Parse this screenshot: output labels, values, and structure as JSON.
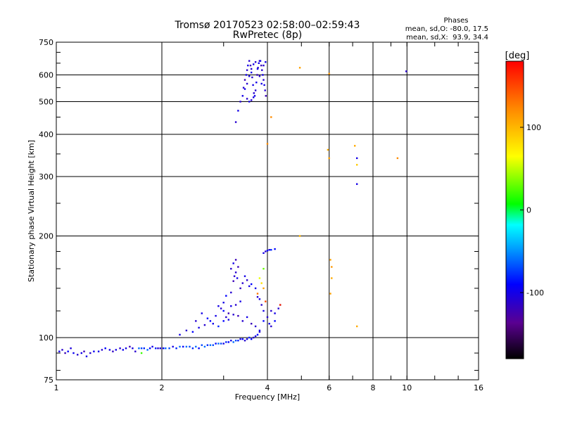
{
  "chart_data": {
    "type": "scatter",
    "title": "Tromsø 20170523 02:58:00–02:59:43",
    "subtitle": "RwPretec (8p)",
    "xlabel": "Frequency [MHz]",
    "ylabel": "Stationary phase Virtual Height [km]",
    "x_scale": "log",
    "y_scale": "log",
    "xlim": [
      1,
      16
    ],
    "ylim": [
      75,
      750
    ],
    "x_ticks": [
      1,
      2,
      4,
      6,
      8,
      10,
      16
    ],
    "x_tick_labels": [
      "1",
      "2",
      "4",
      "6",
      "8",
      "10",
      "16"
    ],
    "y_ticks": [
      75,
      100,
      200,
      300,
      400,
      500,
      600,
      750
    ],
    "y_tick_labels": [
      "75",
      "100",
      "200",
      "300",
      "400",
      "500",
      "600",
      "750"
    ],
    "grid": true,
    "stats": {
      "heading": "Phases",
      "o_line": "mean, sd,O: -80.0, 17.5",
      "x_line": "mean, sd,X:  93.9, 34.4"
    },
    "colorbar": {
      "title": "[deg]",
      "range": [
        -180,
        180
      ],
      "ticks": [
        100,
        0,
        -100
      ],
      "tick_labels": [
        "100",
        "0",
        "-100"
      ]
    },
    "series": [
      {
        "points": [
          [
            1.02,
            91,
            -100
          ],
          [
            1.04,
            92,
            -110
          ],
          [
            1.06,
            90,
            -120
          ],
          [
            1.08,
            91,
            -90
          ],
          [
            1.1,
            93,
            -105
          ],
          [
            1.12,
            90,
            -95
          ],
          [
            1.15,
            89,
            -110
          ],
          [
            1.18,
            90,
            -100
          ],
          [
            1.2,
            91,
            -120
          ],
          [
            1.22,
            88,
            -100
          ],
          [
            1.25,
            90,
            -110
          ],
          [
            1.28,
            91,
            -95
          ],
          [
            1.32,
            91,
            -100
          ],
          [
            1.35,
            92,
            -110
          ],
          [
            1.38,
            93,
            -90
          ],
          [
            1.42,
            92,
            -100
          ],
          [
            1.45,
            91,
            -115
          ],
          [
            1.48,
            92,
            -100
          ],
          [
            1.52,
            93,
            -110
          ],
          [
            1.55,
            92,
            -95
          ],
          [
            1.58,
            93,
            -100
          ],
          [
            1.62,
            94,
            -120
          ],
          [
            1.65,
            93,
            -100
          ],
          [
            1.68,
            91,
            -110
          ],
          [
            1.72,
            93,
            -60
          ],
          [
            1.75,
            93,
            -70
          ],
          [
            1.78,
            93,
            -80
          ],
          [
            1.82,
            92,
            -60
          ],
          [
            1.85,
            93,
            -90
          ],
          [
            1.88,
            94,
            -100
          ],
          [
            1.92,
            93,
            -80
          ],
          [
            1.95,
            93,
            -110
          ],
          [
            1.98,
            93,
            -100
          ],
          [
            2.02,
            93,
            -90
          ],
          [
            2.05,
            93,
            -60
          ],
          [
            2.1,
            93,
            -70
          ],
          [
            2.15,
            94,
            -100
          ],
          [
            2.2,
            93,
            -80
          ],
          [
            2.25,
            94,
            -60
          ],
          [
            2.3,
            94,
            -90
          ],
          [
            2.35,
            94,
            -60
          ],
          [
            2.4,
            94,
            -70
          ],
          [
            2.45,
            93,
            -80
          ],
          [
            2.5,
            94,
            -60
          ],
          [
            2.55,
            93,
            -90
          ],
          [
            2.6,
            95,
            -70
          ],
          [
            2.65,
            94,
            -60
          ],
          [
            2.7,
            95,
            -80
          ],
          [
            2.75,
            95,
            -60
          ],
          [
            2.8,
            95,
            -70
          ],
          [
            2.85,
            96,
            -90
          ],
          [
            2.9,
            96,
            -60
          ],
          [
            2.95,
            96,
            -70
          ],
          [
            3.0,
            96,
            -100
          ],
          [
            3.05,
            97,
            -80
          ],
          [
            3.1,
            97,
            -90
          ],
          [
            3.15,
            98,
            -100
          ],
          [
            3.2,
            97,
            -60
          ],
          [
            3.25,
            98,
            -70
          ],
          [
            3.3,
            98,
            -80
          ],
          [
            3.35,
            99,
            -100
          ],
          [
            3.4,
            99,
            -90
          ],
          [
            3.45,
            98,
            -110
          ],
          [
            3.5,
            99,
            -100
          ],
          [
            3.55,
            100,
            -80
          ],
          [
            3.6,
            99,
            -90
          ],
          [
            3.65,
            100,
            -110
          ],
          [
            3.7,
            101,
            -100
          ],
          [
            3.75,
            102,
            -90
          ],
          [
            3.8,
            104,
            -110
          ]
        ]
      },
      {
        "points": [
          [
            2.25,
            102,
            -100
          ],
          [
            2.35,
            105,
            -110
          ],
          [
            2.45,
            104,
            -90
          ],
          [
            2.55,
            107,
            -100
          ],
          [
            2.65,
            109,
            -110
          ],
          [
            2.75,
            112,
            -90
          ],
          [
            2.85,
            116,
            -100
          ],
          [
            2.95,
            122,
            -110
          ],
          [
            3.0,
            127,
            -100
          ],
          [
            3.05,
            133,
            -90
          ],
          [
            3.15,
            136,
            -110
          ],
          [
            3.2,
            147,
            -120
          ],
          [
            3.25,
            156,
            -110
          ],
          [
            3.3,
            162,
            -120
          ],
          [
            3.15,
            160,
            -110
          ],
          [
            3.2,
            166,
            -100
          ],
          [
            3.25,
            170,
            -120
          ],
          [
            3.22,
            152,
            -110
          ],
          [
            3.28,
            150,
            -100
          ],
          [
            3.35,
            140,
            -115
          ],
          [
            3.4,
            145,
            -110
          ],
          [
            3.45,
            152,
            -100
          ],
          [
            3.5,
            148,
            -110
          ],
          [
            3.55,
            142,
            -100
          ],
          [
            3.6,
            144,
            -90
          ],
          [
            3.7,
            140,
            -100
          ],
          [
            3.75,
            132,
            -110
          ],
          [
            3.8,
            130,
            -100
          ],
          [
            3.85,
            125,
            -110
          ],
          [
            3.9,
            120,
            -100
          ],
          [
            3.1,
            118,
            -120
          ],
          [
            3.2,
            117,
            -110
          ],
          [
            3.3,
            116,
            -120
          ],
          [
            3.15,
            124,
            -100
          ],
          [
            3.25,
            125,
            -110
          ],
          [
            3.35,
            128,
            -100
          ],
          [
            3.4,
            112,
            -110
          ],
          [
            3.5,
            115,
            -100
          ],
          [
            3.6,
            110,
            -120
          ],
          [
            3.7,
            108,
            -110
          ],
          [
            3.8,
            105,
            -100
          ],
          [
            3.9,
            112,
            -90
          ],
          [
            4.0,
            115,
            -110
          ],
          [
            4.05,
            110,
            -100
          ],
          [
            4.1,
            108,
            -110
          ],
          [
            4.2,
            118,
            -100
          ],
          [
            4.3,
            122,
            -110
          ],
          [
            4.35,
            125,
            -100
          ],
          [
            4.2,
            112,
            -90
          ],
          [
            4.1,
            120,
            -110
          ],
          [
            3.9,
            178,
            -100
          ],
          [
            3.95,
            180,
            -110
          ],
          [
            4.0,
            181,
            -90
          ],
          [
            4.05,
            182,
            -100
          ],
          [
            4.1,
            182,
            -80
          ],
          [
            4.2,
            183,
            -90
          ],
          [
            2.9,
            108,
            -80
          ],
          [
            3.0,
            112,
            -90
          ],
          [
            2.8,
            110,
            -100
          ],
          [
            2.7,
            114,
            -90
          ],
          [
            2.6,
            118,
            -100
          ],
          [
            2.5,
            112,
            -110
          ],
          [
            2.9,
            124,
            -100
          ],
          [
            3.0,
            120,
            -90
          ],
          [
            3.05,
            115,
            -110
          ],
          [
            3.1,
            113,
            -100
          ]
        ]
      },
      {
        "points": [
          [
            3.4,
            520,
            -100
          ],
          [
            3.42,
            550,
            -110
          ],
          [
            3.45,
            580,
            -120
          ],
          [
            3.48,
            600,
            -100
          ],
          [
            3.5,
            620,
            -110
          ],
          [
            3.52,
            640,
            -100
          ],
          [
            3.55,
            660,
            -110
          ],
          [
            3.58,
            640,
            -120
          ],
          [
            3.6,
            610,
            -100
          ],
          [
            3.62,
            590,
            -110
          ],
          [
            3.64,
            560,
            -100
          ],
          [
            3.66,
            530,
            -110
          ],
          [
            3.68,
            520,
            -100
          ],
          [
            3.7,
            540,
            -110
          ],
          [
            3.72,
            570,
            -100
          ],
          [
            3.74,
            600,
            -120
          ],
          [
            3.76,
            630,
            -110
          ],
          [
            3.78,
            650,
            -100
          ],
          [
            3.8,
            660,
            -110
          ],
          [
            3.82,
            660,
            -100
          ],
          [
            3.84,
            640,
            -120
          ],
          [
            3.86,
            620,
            -110
          ],
          [
            3.88,
            600,
            -100
          ],
          [
            3.9,
            580,
            -110
          ],
          [
            3.92,
            560,
            -100
          ],
          [
            3.94,
            540,
            -110
          ],
          [
            3.96,
            520,
            -120
          ],
          [
            3.5,
            510,
            -110
          ],
          [
            3.55,
            500,
            -100
          ],
          [
            3.6,
            505,
            -110
          ],
          [
            3.65,
            515,
            -100
          ],
          [
            3.45,
            545,
            -100
          ],
          [
            3.5,
            565,
            -110
          ],
          [
            3.55,
            595,
            -100
          ],
          [
            3.6,
            625,
            -110
          ],
          [
            3.65,
            645,
            -100
          ],
          [
            3.7,
            655,
            -110
          ],
          [
            3.75,
            625,
            -100
          ],
          [
            3.8,
            595,
            -110
          ],
          [
            3.85,
            565,
            -100
          ],
          [
            3.9,
            640,
            -110
          ],
          [
            3.95,
            655,
            -100
          ],
          [
            3.35,
            500,
            -110
          ],
          [
            3.3,
            470,
            -100
          ],
          [
            3.25,
            435,
            -110
          ]
        ]
      },
      {
        "points": [
          [
            4.1,
            450,
            120
          ],
          [
            4.0,
            375,
            120
          ],
          [
            4.95,
            630,
            110
          ],
          [
            5.95,
            360,
            105
          ],
          [
            6.0,
            340,
            110
          ],
          [
            6.0,
            605,
            115
          ],
          [
            6.05,
            170,
            110
          ],
          [
            6.1,
            162,
            115
          ],
          [
            6.1,
            150,
            105
          ],
          [
            6.05,
            135,
            110
          ],
          [
            7.1,
            370,
            105
          ],
          [
            7.2,
            340,
            -100
          ],
          [
            7.2,
            325,
            90
          ],
          [
            7.2,
            285,
            -100
          ],
          [
            7.2,
            108,
            105
          ],
          [
            9.4,
            340,
            120
          ],
          [
            9.95,
            615,
            -110
          ],
          [
            4.95,
            200,
            100
          ],
          [
            3.9,
            160,
            30
          ],
          [
            3.8,
            150,
            60
          ],
          [
            3.85,
            145,
            80
          ],
          [
            3.9,
            140,
            110
          ],
          [
            3.75,
            135,
            130
          ],
          [
            3.95,
            128,
            150
          ],
          [
            4.35,
            125,
            160
          ],
          [
            1.75,
            90,
            20
          ]
        ]
      }
    ]
  }
}
